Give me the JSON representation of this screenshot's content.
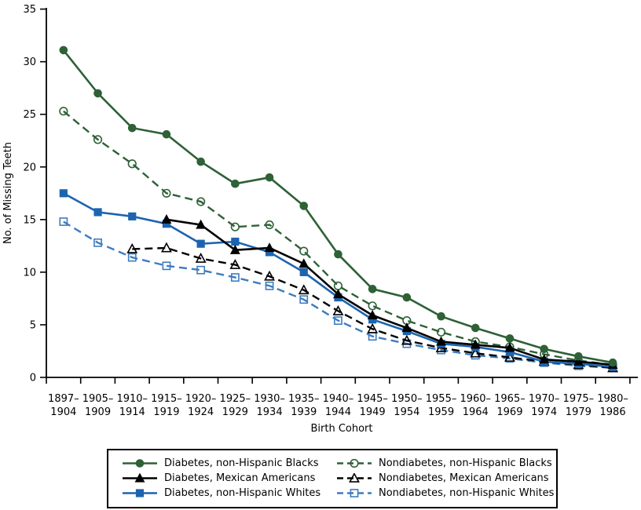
{
  "chart_data": {
    "type": "line",
    "title": "",
    "xlabel": "Birth Cohort",
    "ylabel": "No. of Missing Teeth",
    "ylim": [
      0,
      35
    ],
    "yticks": [
      0,
      5,
      10,
      15,
      20,
      25,
      30,
      35
    ],
    "grid": false,
    "legend_position": "bottom",
    "categories": [
      "1897–1904",
      "1905–1909",
      "1910–1914",
      "1915–1919",
      "1920–1924",
      "1925–1929",
      "1930–1934",
      "1935–1939",
      "1940–1944",
      "1945–1949",
      "1950–1954",
      "1955–1959",
      "1960–1964",
      "1965–1969",
      "1970–1974",
      "1975–1979",
      "1980–1986"
    ],
    "series": [
      {
        "name": "Diabetes, non-Hispanic Blacks",
        "color": "#2e6136",
        "line": "solid",
        "marker": "circle",
        "marker_fill": "filled",
        "values": [
          31.1,
          27.0,
          23.7,
          23.1,
          20.5,
          18.4,
          19.0,
          16.3,
          11.7,
          8.4,
          7.6,
          5.8,
          4.7,
          3.7,
          2.7,
          2.0,
          1.4
        ]
      },
      {
        "name": "Diabetes, Mexican Americans",
        "color": "#000000",
        "line": "solid",
        "marker": "triangle",
        "marker_fill": "filled",
        "values": [
          null,
          null,
          null,
          15.0,
          14.5,
          12.1,
          12.3,
          10.8,
          7.9,
          5.9,
          4.7,
          3.4,
          3.1,
          2.8,
          1.7,
          1.5,
          1.2
        ]
      },
      {
        "name": "Diabetes, non-Hispanic Whites",
        "color": "#1d64b0",
        "line": "solid",
        "marker": "square",
        "marker_fill": "filled",
        "values": [
          17.5,
          15.7,
          15.3,
          14.6,
          12.7,
          12.9,
          11.9,
          10.0,
          7.6,
          5.5,
          4.4,
          3.2,
          2.9,
          2.4,
          1.5,
          1.3,
          1.0
        ]
      },
      {
        "name": "Nondiabetes, non-Hispanic Blacks",
        "color": "#2e6136",
        "line": "dashed",
        "marker": "circle",
        "marker_fill": "open",
        "values": [
          25.3,
          22.6,
          20.3,
          17.5,
          16.7,
          14.3,
          14.5,
          12.0,
          8.7,
          6.8,
          5.4,
          4.3,
          3.4,
          2.9,
          2.2,
          1.6,
          1.2
        ]
      },
      {
        "name": "Nondiabetes, Mexican Americans",
        "color": "#000000",
        "line": "dashed",
        "marker": "triangle",
        "marker_fill": "open",
        "values": [
          null,
          null,
          12.2,
          12.3,
          11.3,
          10.7,
          9.6,
          8.3,
          6.3,
          4.6,
          3.5,
          2.8,
          2.3,
          1.9,
          1.5,
          1.2,
          0.9
        ]
      },
      {
        "name": "Nondiabetes, non-Hispanic Whites",
        "color": "#3e7cc0",
        "line": "dashed",
        "marker": "square",
        "marker_fill": "open",
        "values": [
          14.8,
          12.8,
          11.4,
          10.6,
          10.2,
          9.5,
          8.7,
          7.4,
          5.4,
          3.9,
          3.2,
          2.6,
          2.1,
          1.8,
          1.4,
          1.1,
          0.9
        ]
      }
    ]
  }
}
